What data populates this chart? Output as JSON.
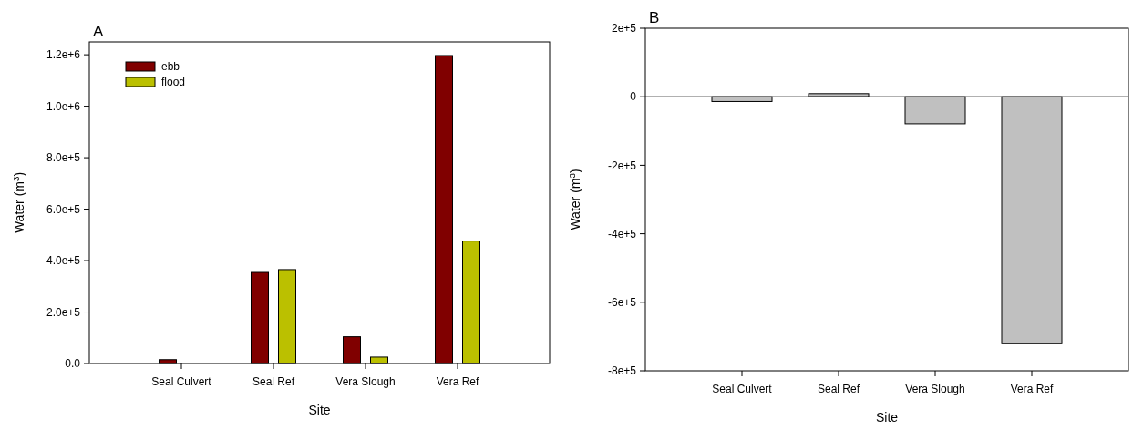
{
  "chart_data": [
    {
      "type": "bar",
      "title": "A",
      "xlabel": "Site",
      "ylabel": "Water (m$^{3}$)",
      "categories": [
        "Seal Culvert",
        "Seal Ref",
        "Vera Slough",
        "Vera Ref"
      ],
      "series": [
        {
          "name": "ebb",
          "color": "#800000",
          "values": [
            15000,
            354000,
            104000,
            1197000
          ]
        },
        {
          "name": "flood",
          "color": "#bbc000",
          "values": [
            0,
            365000,
            25000,
            476000
          ]
        }
      ],
      "ylim": [
        0,
        1250000
      ],
      "yticks": [
        {
          "value": 0,
          "label": "0.0"
        },
        {
          "value": 200000,
          "label": "2.0e+5"
        },
        {
          "value": 400000,
          "label": "4.0e+5"
        },
        {
          "value": 600000,
          "label": "6.0e+5"
        },
        {
          "value": 800000,
          "label": "8.0e+5"
        },
        {
          "value": 1000000,
          "label": "1.0e+6"
        },
        {
          "value": 1200000,
          "label": "1.2e+6"
        }
      ],
      "legend": "top left"
    },
    {
      "type": "bar",
      "title": "B",
      "xlabel": "Site",
      "ylabel": "Water (m$^{3}$)",
      "categories": [
        "Seal Culvert",
        "Seal Ref",
        "Vera Slough",
        "Vera Ref"
      ],
      "series": [
        {
          "color": "#c0c0c0",
          "values": [
            -14000,
            9000,
            -79000,
            -721000
          ]
        }
      ],
      "ylim": [
        -800000,
        200000
      ],
      "yticks": [
        {
          "value": -800000,
          "label": "-8e+5"
        },
        {
          "value": -600000,
          "label": "-6e+5"
        },
        {
          "value": -400000,
          "label": "-4e+5"
        },
        {
          "value": -200000,
          "label": "-2e+5"
        },
        0,
        {
          "value": 200000,
          "label": "2e+5"
        }
      ],
      "ref_lines": [
        {
          "axis": "y",
          "value": 0,
          "color": "#000000"
        }
      ]
    }
  ]
}
